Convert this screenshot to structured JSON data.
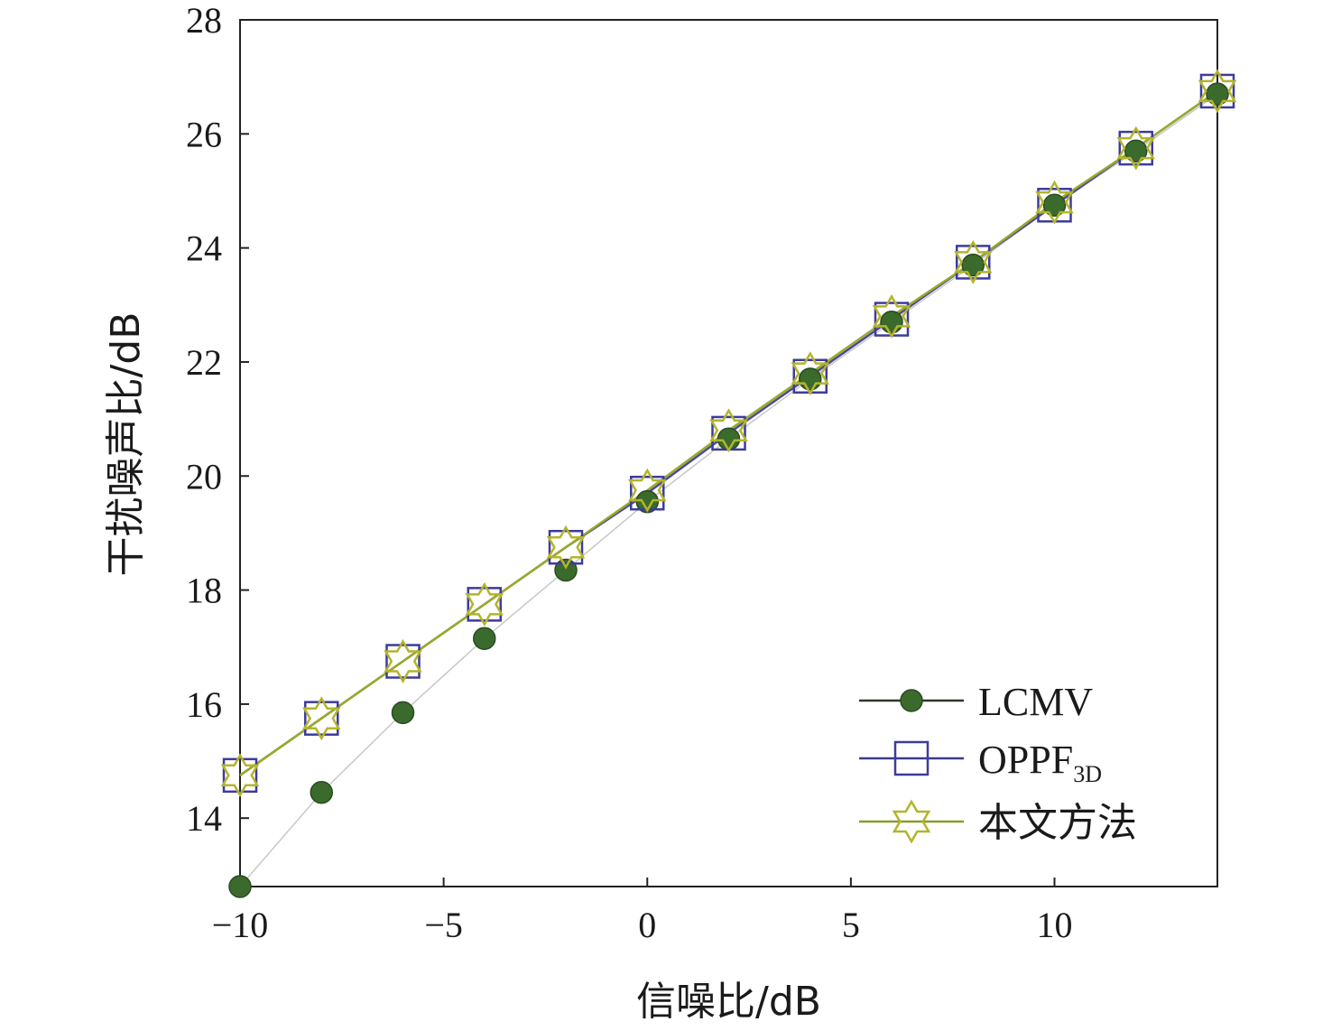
{
  "chart_data": {
    "type": "line",
    "xlabel": "信噪比/dB",
    "ylabel": "干扰噪声比/dB",
    "xlim": [
      -10,
      14
    ],
    "ylim": [
      12.8,
      28
    ],
    "x_tick_labels": [
      {
        "value": -10,
        "label": "−10"
      },
      {
        "value": -5,
        "label": "−5"
      },
      {
        "value": 0,
        "label": "0"
      },
      {
        "value": 5,
        "label": "5"
      },
      {
        "value": 10,
        "label": "10"
      }
    ],
    "y_tick_labels": [
      {
        "value": 14,
        "label": "14"
      },
      {
        "value": 16,
        "label": "16"
      },
      {
        "value": 18,
        "label": "18"
      },
      {
        "value": 20,
        "label": "20"
      },
      {
        "value": 22,
        "label": "22"
      },
      {
        "value": 24,
        "label": "24"
      },
      {
        "value": 26,
        "label": "26"
      },
      {
        "value": 28,
        "label": "28"
      }
    ],
    "grid": false,
    "legend_position": "bottom-right",
    "x": [
      -10,
      -8,
      -6,
      -4,
      -2,
      0,
      2,
      4,
      6,
      8,
      10,
      12,
      14
    ],
    "series": [
      {
        "name": "LCMV",
        "marker": "filled-circle",
        "line_color": "#c8c8c8",
        "marker_color": "#3b6b2c",
        "legend_line_color": "#2b3a24",
        "values": [
          12.8,
          14.45,
          15.85,
          17.15,
          18.35,
          19.55,
          20.65,
          21.7,
          22.7,
          23.7,
          24.75,
          25.7,
          26.7
        ]
      },
      {
        "name": "OPPF",
        "name_sub": "3D",
        "marker": "open-square",
        "line_color": "#4a4a9a",
        "marker_color": "#3c3c9c",
        "legend_line_color": "#3c3c8a",
        "values": [
          14.75,
          15.75,
          16.75,
          17.75,
          18.75,
          19.7,
          20.75,
          21.75,
          22.75,
          23.75,
          24.75,
          25.75,
          26.75
        ]
      },
      {
        "name": "本文方法",
        "marker": "open-star",
        "line_color": "#9aaa28",
        "marker_color": "#b4b42a",
        "legend_line_color": "#8a9a2a",
        "values": [
          14.75,
          15.75,
          16.75,
          17.75,
          18.75,
          19.75,
          20.8,
          21.8,
          22.8,
          23.75,
          24.8,
          25.75,
          26.75
        ]
      }
    ]
  }
}
